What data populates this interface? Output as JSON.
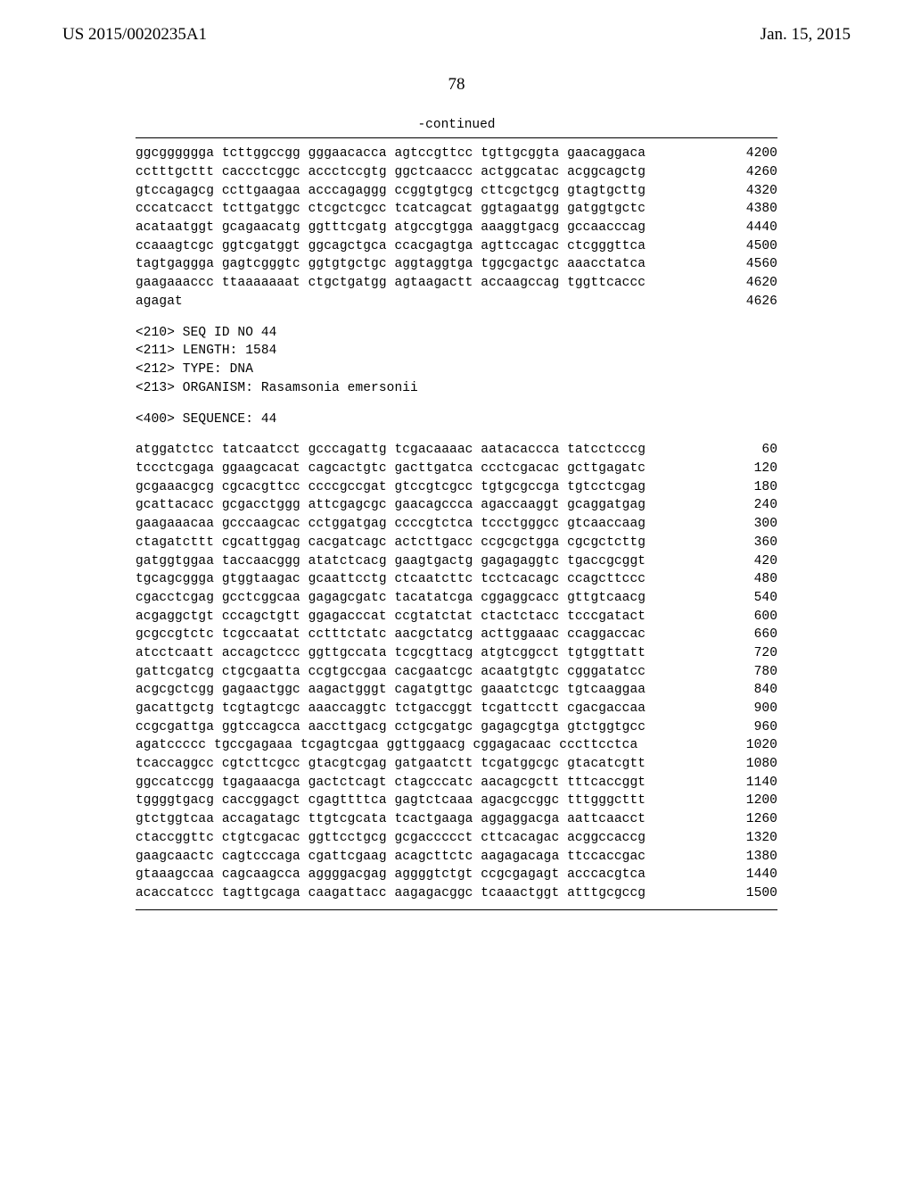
{
  "header": {
    "left": "US 2015/0020235A1",
    "right": "Jan. 15, 2015"
  },
  "pagenum": "78",
  "continued": "-continued",
  "block1": [
    {
      "seq": "ggcgggggga tcttggccgg gggaacacca agtccgttcc tgttgcggta gaacaggaca",
      "num": "4200"
    },
    {
      "seq": "cctttgcttt caccctcggc accctccgtg ggctcaaccc actggcatac acggcagctg",
      "num": "4260"
    },
    {
      "seq": "gtccagagcg ccttgaagaa acccagaggg ccggtgtgcg cttcgctgcg gtagtgcttg",
      "num": "4320"
    },
    {
      "seq": "cccatcacct tcttgatggc ctcgctcgcc tcatcagcat ggtagaatgg gatggtgctc",
      "num": "4380"
    },
    {
      "seq": "acataatggt gcagaacatg ggtttcgatg atgccgtgga aaaggtgacg gccaacccag",
      "num": "4440"
    },
    {
      "seq": "ccaaagtcgc ggtcgatggt ggcagctgca ccacgagtga agttccagac ctcgggttca",
      "num": "4500"
    },
    {
      "seq": "tagtgaggga gagtcgggtc ggtgtgctgc aggtaggtga tggcgactgc aaacctatca",
      "num": "4560"
    },
    {
      "seq": "gaagaaaccc ttaaaaaaat ctgctgatgg agtaagactt accaagccag tggttcaccc",
      "num": "4620"
    },
    {
      "seq": "agagat",
      "num": "4626"
    }
  ],
  "seqheader": [
    "<210> SEQ ID NO 44",
    "<211> LENGTH: 1584",
    "<212> TYPE: DNA",
    "<213> ORGANISM: Rasamsonia emersonii"
  ],
  "seqlabel": "<400> SEQUENCE: 44",
  "block2": [
    {
      "seq": "atggatctcc tatcaatcct gcccagattg tcgacaaaac aatacaccca tatcctcccg",
      "num": "60"
    },
    {
      "seq": "tccctcgaga ggaagcacat cagcactgtc gacttgatca ccctcgacac gcttgagatc",
      "num": "120"
    },
    {
      "seq": "gcgaaacgcg cgcacgttcc ccccgccgat gtccgtcgcc tgtgcgccga tgtcctcgag",
      "num": "180"
    },
    {
      "seq": "gcattacacc gcgacctggg attcgagcgc gaacagccca agaccaaggt gcaggatgag",
      "num": "240"
    },
    {
      "seq": "gaagaaacaa gcccaagcac cctggatgag ccccgtctca tccctgggcc gtcaaccaag",
      "num": "300"
    },
    {
      "seq": "ctagatcttt cgcattggag cacgatcagc actcttgacc ccgcgctgga cgcgctcttg",
      "num": "360"
    },
    {
      "seq": "gatggtggaa taccaacggg atatctcacg gaagtgactg gagagaggtc tgaccgcggt",
      "num": "420"
    },
    {
      "seq": "tgcagcggga gtggtaagac gcaattcctg ctcaatcttc tcctcacagc ccagcttccc",
      "num": "480"
    },
    {
      "seq": "cgacctcgag gcctcggcaa gagagcgatc tacatatcga cggaggcacc gttgtcaacg",
      "num": "540"
    },
    {
      "seq": "acgaggctgt cccagctgtt ggagacccat ccgtatctat ctactctacc tcccgatact",
      "num": "600"
    },
    {
      "seq": "gcgccgtctc tcgccaatat cctttctatc aacgctatcg acttggaaac ccaggaccac",
      "num": "660"
    },
    {
      "seq": "atcctcaatt accagctccc ggttgccata tcgcgttacg atgtcggcct tgtggttatt",
      "num": "720"
    },
    {
      "seq": "gattcgatcg ctgcgaatta ccgtgccgaa cacgaatcgc acaatgtgtc cgggatatcc",
      "num": "780"
    },
    {
      "seq": "acgcgctcgg gagaactggc aagactgggt cagatgttgc gaaatctcgc tgtcaaggaa",
      "num": "840"
    },
    {
      "seq": "gacattgctg tcgtagtcgc aaaccaggtc tctgaccggt tcgattcctt cgacgaccaa",
      "num": "900"
    },
    {
      "seq": "ccgcgattga ggtccagcca aaccttgacg cctgcgatgc gagagcgtga gtctggtgcc",
      "num": "960"
    },
    {
      "seq": "agatccccc tgccgagaaa tcgagtcgaa ggttggaacg cggagacaac cccttcctca",
      "num": "1020"
    },
    {
      "seq": "tcaccaggcc cgtcttcgcc gtacgtcgag gatgaatctt tcgatggcgc gtacatcgtt",
      "num": "1080"
    },
    {
      "seq": "ggccatccgg tgagaaacga gactctcagt ctagcccatc aacagcgctt tttcaccggt",
      "num": "1140"
    },
    {
      "seq": "tggggtgacg caccggagct cgagttttca gagtctcaaa agacgccggc tttgggcttt",
      "num": "1200"
    },
    {
      "seq": "gtctggtcaa accagatagc ttgtcgcata tcactgaaga aggaggacga aattcaacct",
      "num": "1260"
    },
    {
      "seq": "ctaccggttc ctgtcgacac ggttcctgcg gcgaccccct cttcacagac acggccaccg",
      "num": "1320"
    },
    {
      "seq": "gaagcaactc cagtcccaga cgattcgaag acagcttctc aagagacaga ttccaccgac",
      "num": "1380"
    },
    {
      "seq": "gtaaagccaa cagcaagcca aggggacgag aggggtctgt ccgcgagagt acccacgtca",
      "num": "1440"
    },
    {
      "seq": "acaccatccc tagttgcaga caagattacc aagagacggc tcaaactggt atttgcgccg",
      "num": "1500"
    }
  ]
}
